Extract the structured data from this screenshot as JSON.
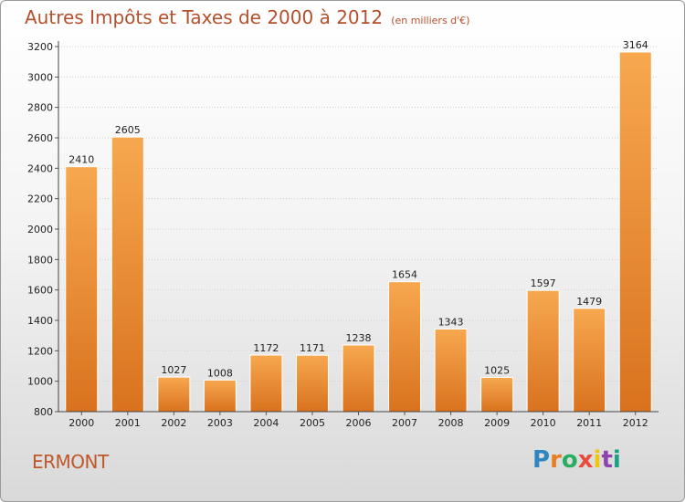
{
  "title": "Autres Impôts et Taxes de 2000 à 2012",
  "unit": "(en milliers d'€)",
  "commune": "ERMONT",
  "logo": "Proxiti",
  "colors": {
    "title": "#b5502d",
    "bar_top": "#f7a84f",
    "bar_bottom": "#d9721e",
    "commune": "#c0572b"
  },
  "chart_data": {
    "type": "bar",
    "title": "Autres Impôts et Taxes de 2000 à 2012",
    "subtitle": "(en milliers d'€)",
    "categories": [
      "2000",
      "2001",
      "2002",
      "2003",
      "2004",
      "2005",
      "2006",
      "2007",
      "2008",
      "2009",
      "2010",
      "2011",
      "2012"
    ],
    "values": [
      2410,
      2605,
      1027,
      1008,
      1172,
      1171,
      1238,
      1654,
      1343,
      1025,
      1597,
      1479,
      3164
    ],
    "ylim": [
      800,
      3200
    ],
    "yticks": [
      800,
      1000,
      1200,
      1400,
      1600,
      1800,
      2000,
      2200,
      2400,
      2600,
      2800,
      3000,
      3200
    ],
    "grid": true,
    "data_labels": true
  }
}
